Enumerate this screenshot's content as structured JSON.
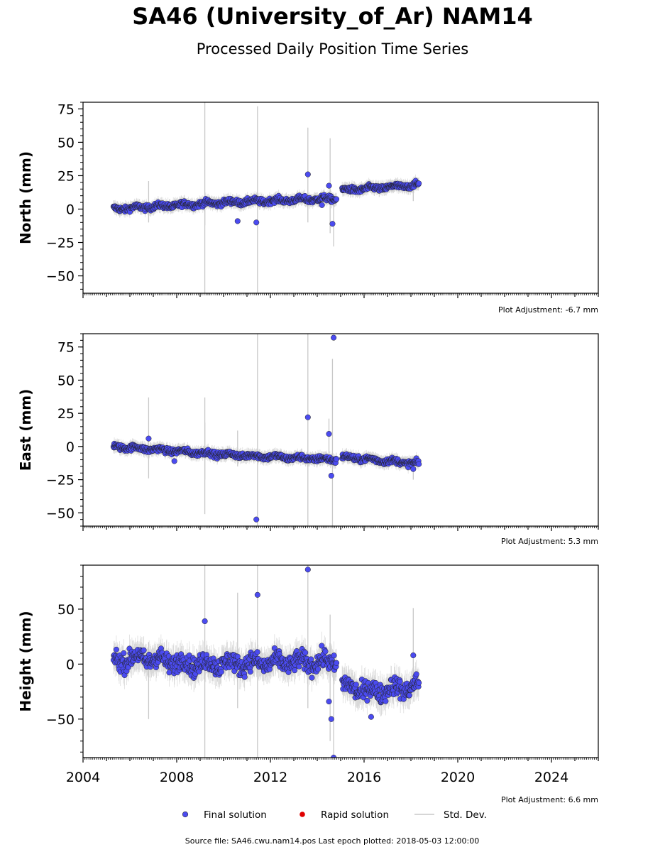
{
  "title": "SA46 (University_of_Ar) NAM14",
  "subtitle": "Processed Daily Position Time Series",
  "legend": {
    "final": "Final solution",
    "rapid": "Rapid solution",
    "std": "Std. Dev.",
    "colors": {
      "final": "#4b4bf0",
      "rapid": "#e00000",
      "std": "#c8c8c8"
    }
  },
  "footer": "Source file: SA46.cwu.nam14.pos  Last epoch plotted: 2018-05-03 12:00:00",
  "chart_data": [
    {
      "type": "scatter",
      "ylabel": "North (mm)",
      "adjustment": "Plot Adjustment: -6.7 mm",
      "xlim": [
        2004,
        2026
      ],
      "ylim": [
        -63,
        80
      ],
      "yticks": [
        -50,
        -25,
        0,
        25,
        50,
        75
      ],
      "yticklabels": [
        "−50",
        "−25",
        "0",
        "25",
        "50",
        "75"
      ],
      "trend": [
        {
          "x": 2005.3,
          "y": 0
        },
        {
          "x": 2010.0,
          "y": 5
        },
        {
          "x": 2014.8,
          "y": 8
        },
        {
          "x": 2015.1,
          "y": 14
        },
        {
          "x": 2018.35,
          "y": 18
        }
      ],
      "noise": 1.5,
      "outliers": [
        {
          "x": 2010.6,
          "y": -9,
          "err": 9
        },
        {
          "x": 2011.4,
          "y": -10,
          "err": 86
        },
        {
          "x": 2013.6,
          "y": 26,
          "err": 35
        },
        {
          "x": 2014.5,
          "y": 17.5,
          "err": 35
        },
        {
          "x": 2014.65,
          "y": -11,
          "err": 17
        },
        {
          "x": 2014.2,
          "y": 3,
          "err": 5
        }
      ],
      "errbars": [
        {
          "x": 2006.8,
          "lo": -10,
          "hi": 21
        },
        {
          "x": 2009.2,
          "lo": -12,
          "hi": 80
        },
        {
          "x": 2011.45,
          "lo": -63,
          "hi": 77
        },
        {
          "x": 2013.6,
          "lo": -10,
          "hi": 61
        },
        {
          "x": 2014.55,
          "lo": -18,
          "hi": 53
        },
        {
          "x": 2014.7,
          "lo": -28,
          "hi": 5
        },
        {
          "x": 2009.2,
          "lo": -63,
          "hi": 5
        },
        {
          "x": 2018.1,
          "lo": 6,
          "hi": 18
        }
      ]
    },
    {
      "type": "scatter",
      "ylabel": "East (mm)",
      "adjustment": "Plot Adjustment: 5.3 mm",
      "xlim": [
        2004,
        2026
      ],
      "ylim": [
        -60,
        85
      ],
      "yticks": [
        -50,
        -25,
        0,
        25,
        50,
        75
      ],
      "yticklabels": [
        "−50",
        "−25",
        "0",
        "25",
        "50",
        "75"
      ],
      "trend": [
        {
          "x": 2005.3,
          "y": 0
        },
        {
          "x": 2010.0,
          "y": -6
        },
        {
          "x": 2014.8,
          "y": -10
        },
        {
          "x": 2015.1,
          "y": -8
        },
        {
          "x": 2018.35,
          "y": -13
        }
      ],
      "noise": 1.5,
      "outliers": [
        {
          "x": 2006.8,
          "y": 6,
          "err": 5
        },
        {
          "x": 2007.9,
          "y": -11,
          "err": 5
        },
        {
          "x": 2011.4,
          "y": -55,
          "err": 10
        },
        {
          "x": 2013.6,
          "y": 22,
          "err": 10
        },
        {
          "x": 2014.5,
          "y": 9.5,
          "err": 10
        },
        {
          "x": 2014.6,
          "y": -22,
          "err": 10
        },
        {
          "x": 2014.7,
          "y": 82,
          "err": 10
        },
        {
          "x": 2018.1,
          "y": -17,
          "err": 5
        }
      ],
      "errbars": [
        {
          "x": 2006.8,
          "lo": -24,
          "hi": 37
        },
        {
          "x": 2009.2,
          "lo": -51,
          "hi": 37
        },
        {
          "x": 2009.2,
          "lo": -25,
          "hi": 18
        },
        {
          "x": 2010.6,
          "lo": -15,
          "hi": 12
        },
        {
          "x": 2011.45,
          "lo": -60,
          "hi": 85
        },
        {
          "x": 2013.6,
          "lo": -60,
          "hi": 85
        },
        {
          "x": 2014.5,
          "lo": -5,
          "hi": 21
        },
        {
          "x": 2014.65,
          "lo": -60,
          "hi": 66
        },
        {
          "x": 2018.1,
          "lo": -25,
          "hi": -8
        }
      ]
    },
    {
      "type": "scatter",
      "ylabel": "Height (mm)",
      "adjustment": "Plot Adjustment: 6.6 mm",
      "xlim": [
        2004,
        2026
      ],
      "ylim": [
        -85,
        90
      ],
      "yticks": [
        -50,
        0,
        50
      ],
      "yticklabels": [
        "−50",
        "0",
        "50"
      ],
      "xticks": [
        2004,
        2008,
        2012,
        2016,
        2020,
        2024
      ],
      "xticklabels": [
        "2004",
        "2008",
        "2012",
        "2016",
        "2020",
        "2024"
      ],
      "trend": [
        {
          "x": 2005.3,
          "y": 3
        },
        {
          "x": 2006.5,
          "y": 6
        },
        {
          "x": 2008.5,
          "y": 0
        },
        {
          "x": 2014.8,
          "y": 2
        },
        {
          "x": 2015.1,
          "y": -20
        },
        {
          "x": 2016.3,
          "y": -25
        },
        {
          "x": 2018.35,
          "y": -20
        }
      ],
      "noise": 6,
      "outliers": [
        {
          "x": 2009.2,
          "y": 39,
          "err": 10
        },
        {
          "x": 2011.45,
          "y": 63,
          "err": 10
        },
        {
          "x": 2013.6,
          "y": 86,
          "err": 10
        },
        {
          "x": 2014.5,
          "y": -34,
          "err": 10
        },
        {
          "x": 2014.6,
          "y": -50,
          "err": 10
        },
        {
          "x": 2014.7,
          "y": -85,
          "err": 10
        },
        {
          "x": 2016.3,
          "y": -48,
          "err": 10
        },
        {
          "x": 2018.1,
          "y": 8,
          "err": 10
        }
      ],
      "errbars": [
        {
          "x": 2006.8,
          "lo": -50,
          "hi": 20
        },
        {
          "x": 2009.2,
          "lo": -85,
          "hi": 90
        },
        {
          "x": 2010.6,
          "lo": -40,
          "hi": 65
        },
        {
          "x": 2011.45,
          "lo": -85,
          "hi": 90
        },
        {
          "x": 2013.6,
          "lo": -40,
          "hi": 90
        },
        {
          "x": 2014.55,
          "lo": -70,
          "hi": 45
        },
        {
          "x": 2014.7,
          "lo": -85,
          "hi": 5
        },
        {
          "x": 2018.1,
          "lo": -25,
          "hi": 51
        }
      ]
    }
  ]
}
